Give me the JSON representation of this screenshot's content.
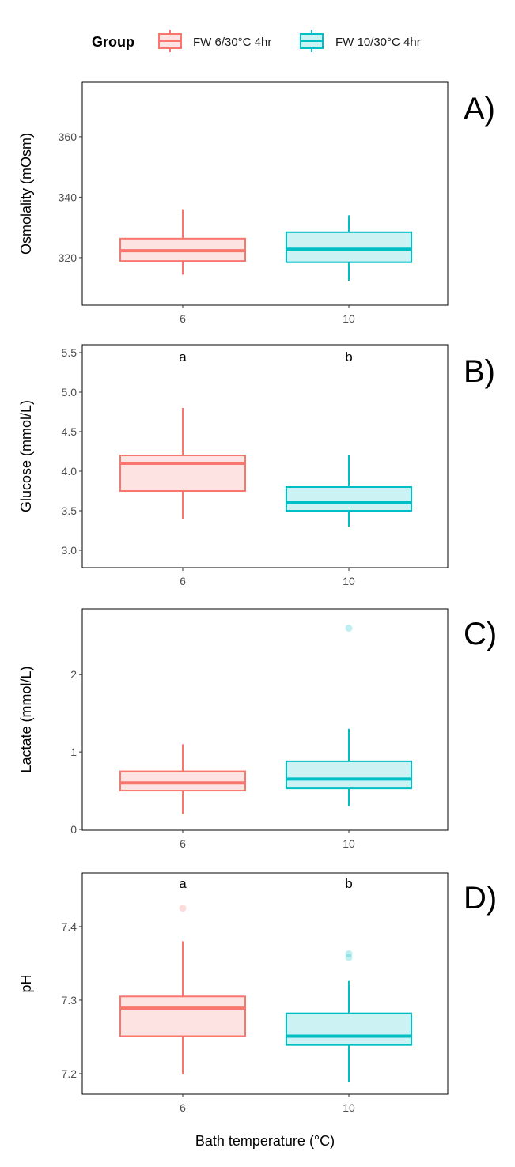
{
  "chart_data": [
    {
      "type": "box",
      "panel_label": "A)",
      "ylabel": "Osmolality (mOsm)",
      "ylim": [
        304.3,
        378
      ],
      "yticks": [
        320,
        340,
        360
      ],
      "categories": [
        "6",
        "10"
      ],
      "significance": [],
      "boxes": [
        {
          "group": "FW 6/30°C 4hr",
          "whisker_low": 314.4,
          "q1": 318.9,
          "median": 322.3,
          "q3": 326.3,
          "whisker_high": 336,
          "outliers": []
        },
        {
          "group": "FW 10/30°C 4hr",
          "whisker_low": 312.4,
          "q1": 318.5,
          "median": 322.8,
          "q3": 328.4,
          "whisker_high": 334,
          "outliers": []
        }
      ]
    },
    {
      "type": "box",
      "panel_label": "B)",
      "ylabel": "Glucose (mmol/L)",
      "ylim": [
        2.78,
        5.6
      ],
      "yticks": [
        3.0,
        3.5,
        4.0,
        4.5,
        5.0,
        5.5
      ],
      "ytick_labels": [
        "3.0",
        "3.5",
        "4.0",
        "4.5",
        "5.0",
        "5.5"
      ],
      "categories": [
        "6",
        "10"
      ],
      "significance": [
        "a",
        "b"
      ],
      "boxes": [
        {
          "group": "FW 6/30°C 4hr",
          "whisker_low": 3.4,
          "q1": 3.75,
          "median": 4.1,
          "q3": 4.2,
          "whisker_high": 4.8,
          "outliers": []
        },
        {
          "group": "FW 10/30°C 4hr",
          "whisker_low": 3.3,
          "q1": 3.5,
          "median": 3.6,
          "q3": 3.8,
          "whisker_high": 4.2,
          "outliers": []
        }
      ]
    },
    {
      "type": "box",
      "panel_label": "C)",
      "ylabel": "Lactate (mmol/L)",
      "ylim": [
        -0.01,
        2.85
      ],
      "yticks": [
        0,
        1,
        2
      ],
      "categories": [
        "6",
        "10"
      ],
      "significance": [],
      "boxes": [
        {
          "group": "FW 6/30°C 4hr",
          "whisker_low": 0.2,
          "q1": 0.5,
          "median": 0.6,
          "q3": 0.75,
          "whisker_high": 1.1,
          "outliers": []
        },
        {
          "group": "FW 10/30°C 4hr",
          "whisker_low": 0.3,
          "q1": 0.53,
          "median": 0.65,
          "q3": 0.88,
          "whisker_high": 1.3,
          "outliers": [
            2.6
          ]
        }
      ]
    },
    {
      "type": "box",
      "panel_label": "D)",
      "ylabel": "pH",
      "ylim": [
        7.172,
        7.473
      ],
      "yticks": [
        7.2,
        7.3,
        7.4
      ],
      "ytick_labels": [
        "7.2",
        "7.3",
        "7.4"
      ],
      "categories": [
        "6",
        "10"
      ],
      "significance": [
        "a",
        "b"
      ],
      "boxes": [
        {
          "group": "FW 6/30°C 4hr",
          "whisker_low": 7.199,
          "q1": 7.251,
          "median": 7.289,
          "q3": 7.305,
          "whisker_high": 7.38,
          "outliers": [
            7.425
          ]
        },
        {
          "group": "FW 10/30°C 4hr",
          "whisker_low": 7.189,
          "q1": 7.239,
          "median": 7.251,
          "q3": 7.282,
          "whisker_high": 7.326,
          "outliers": [
            7.363,
            7.358
          ]
        }
      ]
    }
  ],
  "xlabel": "Bath temperature (°C)",
  "legend": {
    "title": "Group",
    "position": "top",
    "entries": [
      {
        "label": "FW 6/30°C 4hr",
        "color": "#F8766D",
        "fill": "#FDE4E2"
      },
      {
        "label": "FW 10/30°C 4hr",
        "color": "#00BFC4",
        "fill": "#CCF2F3"
      }
    ]
  }
}
